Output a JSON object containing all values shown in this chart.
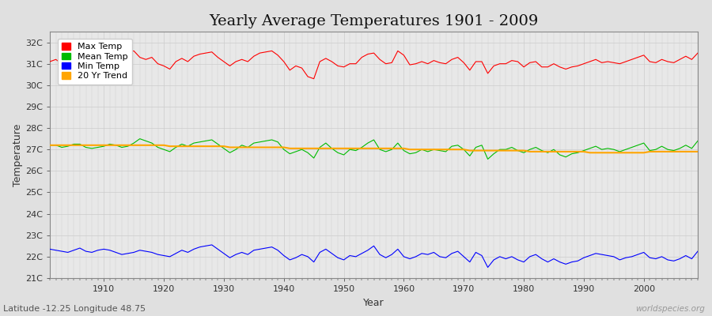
{
  "title": "Yearly Average Temperatures 1901 - 2009",
  "xlabel": "Year",
  "ylabel": "Temperature",
  "subtitle": "Latitude -12.25 Longitude 48.75",
  "watermark": "worldspecies.org",
  "ylim": [
    21.0,
    32.5
  ],
  "yticks": [
    21,
    22,
    23,
    24,
    25,
    26,
    27,
    28,
    29,
    30,
    31,
    32
  ],
  "ytick_labels": [
    "21C",
    "22C",
    "23C",
    "24C",
    "25C",
    "26C",
    "27C",
    "28C",
    "29C",
    "30C",
    "31C",
    "32C"
  ],
  "xlim": [
    1901,
    2009
  ],
  "xticks": [
    1910,
    1920,
    1930,
    1940,
    1950,
    1960,
    1970,
    1980,
    1990,
    2000
  ],
  "legend_labels": [
    "Max Temp",
    "Mean Temp",
    "Min Temp",
    "20 Yr Trend"
  ],
  "legend_colors": [
    "#ff0000",
    "#00bb00",
    "#0000ff",
    "#ffa500"
  ],
  "max_temp": [
    31.1,
    31.2,
    31.0,
    31.15,
    30.85,
    31.05,
    31.0,
    31.1,
    30.8,
    31.05,
    31.3,
    31.1,
    31.35,
    31.55,
    31.6,
    31.3,
    31.2,
    31.3,
    31.0,
    30.9,
    30.75,
    31.1,
    31.25,
    31.1,
    31.35,
    31.45,
    31.5,
    31.55,
    31.3,
    31.1,
    30.9,
    31.1,
    31.2,
    31.1,
    31.35,
    31.5,
    31.55,
    31.6,
    31.4,
    31.1,
    30.7,
    30.9,
    30.8,
    30.4,
    30.3,
    31.1,
    31.25,
    31.1,
    30.9,
    30.85,
    31.0,
    31.0,
    31.3,
    31.45,
    31.5,
    31.2,
    31.0,
    31.05,
    31.6,
    31.4,
    30.95,
    31.0,
    31.1,
    31.0,
    31.15,
    31.05,
    31.0,
    31.2,
    31.3,
    31.05,
    30.7,
    31.1,
    31.1,
    30.55,
    30.9,
    31.0,
    31.0,
    31.15,
    31.1,
    30.85,
    31.05,
    31.1,
    30.85,
    30.85,
    31.0,
    30.85,
    30.75,
    30.85,
    30.9,
    31.0,
    31.1,
    31.2,
    31.05,
    31.1,
    31.05,
    31.0,
    31.1,
    31.2,
    31.3,
    31.4,
    31.1,
    31.05,
    31.2,
    31.1,
    31.05,
    31.2,
    31.35,
    31.2,
    31.5
  ],
  "mean_temp": [
    27.2,
    27.2,
    27.1,
    27.15,
    27.25,
    27.25,
    27.1,
    27.05,
    27.1,
    27.15,
    27.25,
    27.2,
    27.1,
    27.15,
    27.3,
    27.5,
    27.4,
    27.3,
    27.1,
    27.0,
    26.9,
    27.1,
    27.25,
    27.15,
    27.3,
    27.35,
    27.4,
    27.45,
    27.25,
    27.05,
    26.85,
    27.0,
    27.2,
    27.1,
    27.3,
    27.35,
    27.4,
    27.45,
    27.35,
    27.0,
    26.8,
    26.9,
    27.0,
    26.85,
    26.6,
    27.1,
    27.3,
    27.05,
    26.85,
    26.75,
    27.0,
    26.95,
    27.1,
    27.3,
    27.45,
    27.0,
    26.9,
    27.0,
    27.3,
    26.95,
    26.8,
    26.85,
    27.0,
    26.9,
    27.0,
    26.95,
    26.9,
    27.15,
    27.2,
    27.0,
    26.7,
    27.1,
    27.2,
    26.55,
    26.8,
    27.0,
    27.0,
    27.1,
    26.95,
    26.85,
    27.0,
    27.1,
    26.95,
    26.85,
    27.0,
    26.75,
    26.65,
    26.8,
    26.85,
    26.95,
    27.05,
    27.15,
    27.0,
    27.05,
    27.0,
    26.9,
    27.0,
    27.1,
    27.2,
    27.3,
    26.95,
    27.0,
    27.15,
    27.0,
    26.95,
    27.05,
    27.2,
    27.05,
    27.4
  ],
  "min_temp": [
    22.35,
    22.3,
    22.25,
    22.2,
    22.3,
    22.4,
    22.25,
    22.2,
    22.3,
    22.35,
    22.3,
    22.2,
    22.1,
    22.15,
    22.2,
    22.3,
    22.25,
    22.2,
    22.1,
    22.05,
    22.0,
    22.15,
    22.3,
    22.2,
    22.35,
    22.45,
    22.5,
    22.55,
    22.35,
    22.15,
    21.95,
    22.1,
    22.2,
    22.1,
    22.3,
    22.35,
    22.4,
    22.45,
    22.3,
    22.05,
    21.85,
    21.95,
    22.1,
    22.0,
    21.75,
    22.2,
    22.35,
    22.15,
    21.95,
    21.85,
    22.05,
    22.0,
    22.15,
    22.3,
    22.5,
    22.1,
    21.95,
    22.1,
    22.35,
    22.0,
    21.9,
    22.0,
    22.15,
    22.1,
    22.2,
    22.0,
    21.95,
    22.15,
    22.25,
    22.0,
    21.75,
    22.2,
    22.05,
    21.5,
    21.85,
    22.0,
    21.9,
    22.0,
    21.85,
    21.75,
    22.0,
    22.1,
    21.9,
    21.75,
    21.9,
    21.75,
    21.65,
    21.75,
    21.8,
    21.95,
    22.05,
    22.15,
    22.1,
    22.05,
    22.0,
    21.85,
    21.95,
    22.0,
    22.1,
    22.2,
    21.95,
    21.9,
    22.0,
    21.85,
    21.8,
    21.9,
    22.05,
    21.9,
    22.25
  ],
  "trend_temp": [
    27.2,
    27.2,
    27.2,
    27.2,
    27.2,
    27.2,
    27.2,
    27.2,
    27.2,
    27.2,
    27.2,
    27.2,
    27.2,
    27.2,
    27.2,
    27.2,
    27.2,
    27.2,
    27.2,
    27.2,
    27.15,
    27.15,
    27.15,
    27.15,
    27.15,
    27.15,
    27.15,
    27.15,
    27.15,
    27.15,
    27.1,
    27.1,
    27.1,
    27.1,
    27.1,
    27.1,
    27.1,
    27.1,
    27.1,
    27.1,
    27.05,
    27.05,
    27.05,
    27.05,
    27.05,
    27.05,
    27.05,
    27.05,
    27.05,
    27.05,
    27.05,
    27.05,
    27.05,
    27.05,
    27.05,
    27.05,
    27.05,
    27.05,
    27.05,
    27.05,
    27.0,
    27.0,
    27.0,
    27.0,
    27.0,
    27.0,
    27.0,
    27.0,
    27.0,
    27.0,
    26.95,
    26.95,
    26.95,
    26.95,
    26.95,
    26.95,
    26.95,
    26.95,
    26.95,
    26.95,
    26.9,
    26.9,
    26.9,
    26.9,
    26.9,
    26.9,
    26.9,
    26.9,
    26.9,
    26.9,
    26.85,
    26.85,
    26.85,
    26.85,
    26.85,
    26.85,
    26.85,
    26.85,
    26.85,
    26.85,
    26.9,
    26.9,
    26.9,
    26.9,
    26.9,
    26.9,
    26.9,
    26.9,
    26.9
  ]
}
